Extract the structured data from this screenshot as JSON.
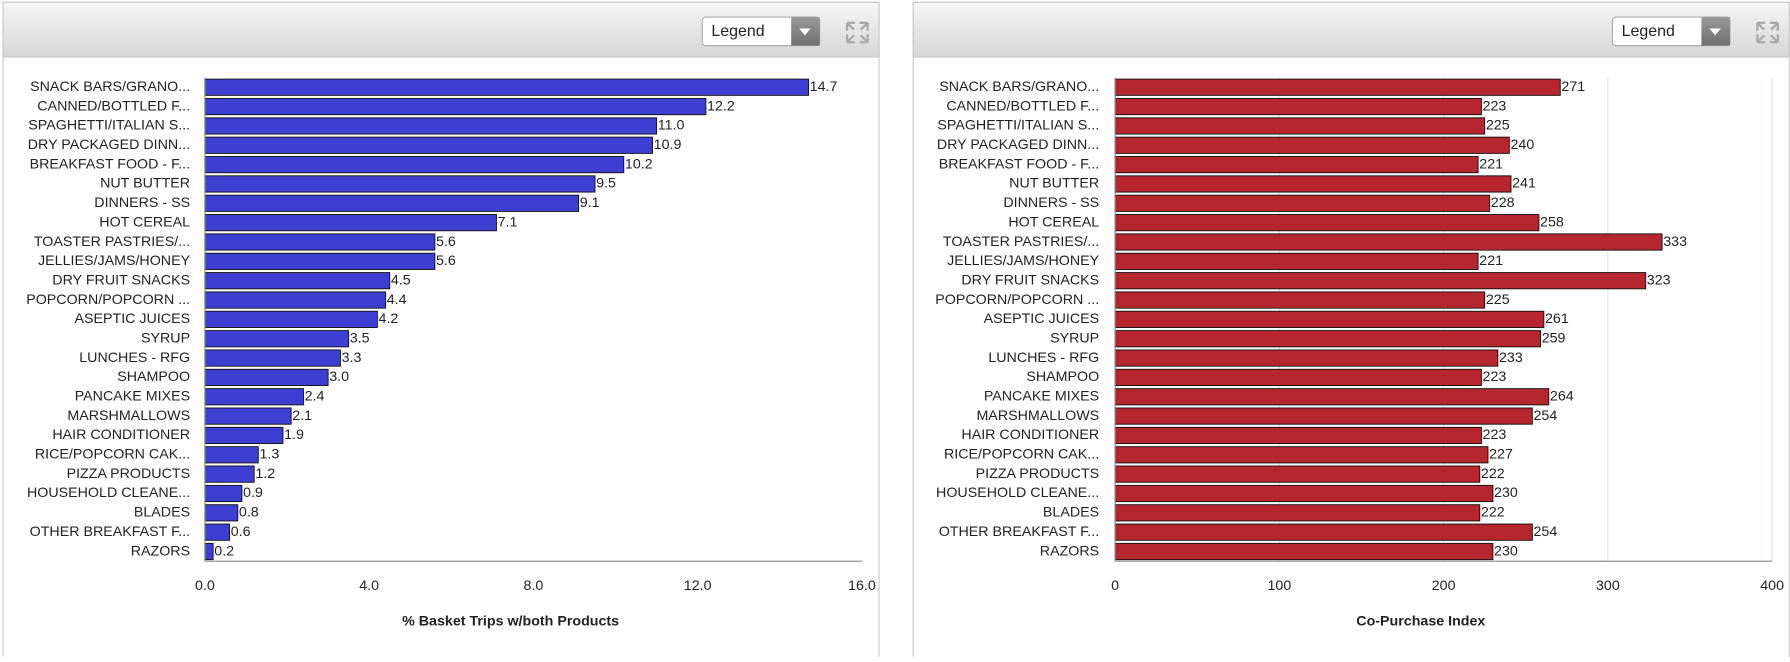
{
  "chart_data": [
    {
      "type": "hbar",
      "dropdown": "Legend",
      "xlabel": "% Basket Trips w/both Products",
      "categories": [
        "SNACK BARS/GRANO...",
        "CANNED/BOTTLED F...",
        "SPAGHETTI/ITALIAN S...",
        "DRY PACKAGED DINN...",
        "BREAKFAST FOOD - F...",
        "NUT BUTTER",
        "DINNERS - SS",
        "HOT CEREAL",
        "TOASTER PASTRIES/...",
        "JELLIES/JAMS/HONEY",
        "DRY FRUIT SNACKS",
        "POPCORN/POPCORN ...",
        "ASEPTIC JUICES",
        "SYRUP",
        "LUNCHES - RFG",
        "SHAMPOO",
        "PANCAKE MIXES",
        "MARSHMALLOWS",
        "HAIR CONDITIONER",
        "RICE/POPCORN CAK...",
        "PIZZA PRODUCTS",
        "HOUSEHOLD CLEANE...",
        "BLADES",
        "OTHER BREAKFAST F...",
        "RAZORS"
      ],
      "values": [
        14.7,
        12.2,
        11.0,
        10.9,
        10.2,
        9.5,
        9.1,
        7.1,
        5.6,
        5.6,
        4.5,
        4.4,
        4.2,
        3.5,
        3.3,
        3.0,
        2.4,
        2.1,
        1.9,
        1.3,
        1.2,
        0.9,
        0.8,
        0.6,
        0.2
      ],
      "value_labels": [
        "14.7",
        "12.2",
        "11.0",
        "10.9",
        "10.2",
        "9.5",
        "9.1",
        "7.1",
        "5.6",
        "5.6",
        "4.5",
        "4.4",
        "4.2",
        "3.5",
        "3.3",
        "3.0",
        "2.4",
        "2.1",
        "1.9",
        "1.3",
        "1.2",
        "0.9",
        "0.8",
        "0.6",
        "0.2"
      ],
      "color": "#3d3fd3",
      "xlim": [
        0,
        16
      ],
      "xticks": [
        {
          "value": 0,
          "label": "0.0"
        },
        {
          "value": 4,
          "label": "4.0"
        },
        {
          "value": 8,
          "label": "8.0"
        },
        {
          "value": 12,
          "label": "12.0"
        },
        {
          "value": 16,
          "label": "16.0"
        }
      ],
      "grid": false
    },
    {
      "type": "hbar",
      "dropdown": "Legend",
      "xlabel": "Co-Purchase Index",
      "categories": [
        "SNACK BARS/GRANO...",
        "CANNED/BOTTLED F...",
        "SPAGHETTI/ITALIAN S...",
        "DRY PACKAGED DINN...",
        "BREAKFAST FOOD - F...",
        "NUT BUTTER",
        "DINNERS - SS",
        "HOT CEREAL",
        "TOASTER PASTRIES/...",
        "JELLIES/JAMS/HONEY",
        "DRY FRUIT SNACKS",
        "POPCORN/POPCORN ...",
        "ASEPTIC JUICES",
        "SYRUP",
        "LUNCHES - RFG",
        "SHAMPOO",
        "PANCAKE MIXES",
        "MARSHMALLOWS",
        "HAIR CONDITIONER",
        "RICE/POPCORN CAK...",
        "PIZZA PRODUCTS",
        "HOUSEHOLD CLEANE...",
        "BLADES",
        "OTHER BREAKFAST F...",
        "RAZORS"
      ],
      "values": [
        271,
        223,
        225,
        240,
        221,
        241,
        228,
        258,
        333,
        221,
        323,
        225,
        261,
        259,
        233,
        223,
        264,
        254,
        223,
        227,
        222,
        230,
        222,
        254,
        230
      ],
      "color": "#b5262e",
      "xlim": [
        0,
        400
      ],
      "xticks": [
        0,
        100,
        200,
        300,
        400
      ],
      "grid": true
    }
  ]
}
